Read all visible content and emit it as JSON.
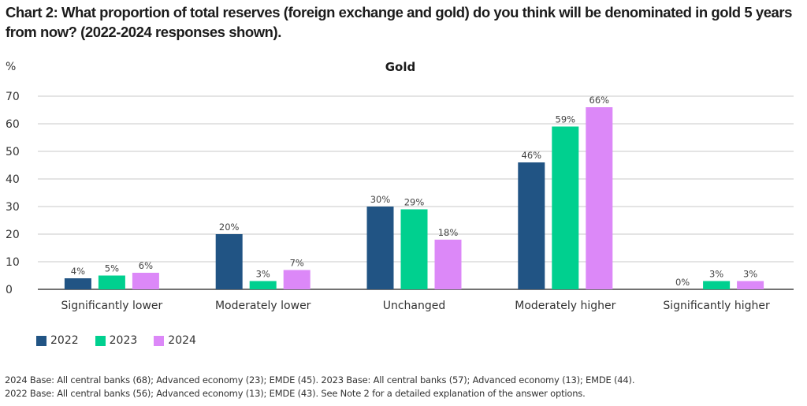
{
  "title": "Chart 2: What proportion of total reserves (foreign exchange and gold) do you think will be denominated in gold 5 years from now? (2022-2024 responses shown).",
  "chart_data": {
    "type": "bar",
    "title": "Gold",
    "ylabel": "%",
    "xlabel": "",
    "ylim": [
      0,
      70
    ],
    "yticks": [
      0,
      10,
      20,
      30,
      40,
      50,
      60,
      70
    ],
    "grid": true,
    "legend_position": "bottom-left",
    "categories": [
      "Significantly lower",
      "Moderately lower",
      "Unchanged",
      "Moderately higher",
      "Significantly higher"
    ],
    "series": [
      {
        "name": "2022",
        "color": "#215484",
        "values": [
          4,
          20,
          30,
          46,
          0
        ],
        "labels": [
          "4%",
          "20%",
          "30%",
          "46%",
          "0%"
        ]
      },
      {
        "name": "2023",
        "color": "#00d08f",
        "values": [
          5,
          3,
          29,
          59,
          3
        ],
        "labels": [
          "5%",
          "3%",
          "29%",
          "59%",
          "3%"
        ]
      },
      {
        "name": "2024",
        "color": "#dc88f8",
        "values": [
          6,
          7,
          18,
          66,
          3
        ],
        "labels": [
          "6%",
          "7%",
          "18%",
          "66%",
          "3%"
        ]
      }
    ]
  },
  "footnote": {
    "line1": "2024 Base: All central banks (68); Advanced economy (23); EMDE (45). 2023 Base: All central banks (57); Advanced economy (13); EMDE (44).",
    "line2": "2022 Base: All central banks (56); Advanced economy (13); EMDE (43). See Note 2 for a detailed explanation of the answer options."
  }
}
